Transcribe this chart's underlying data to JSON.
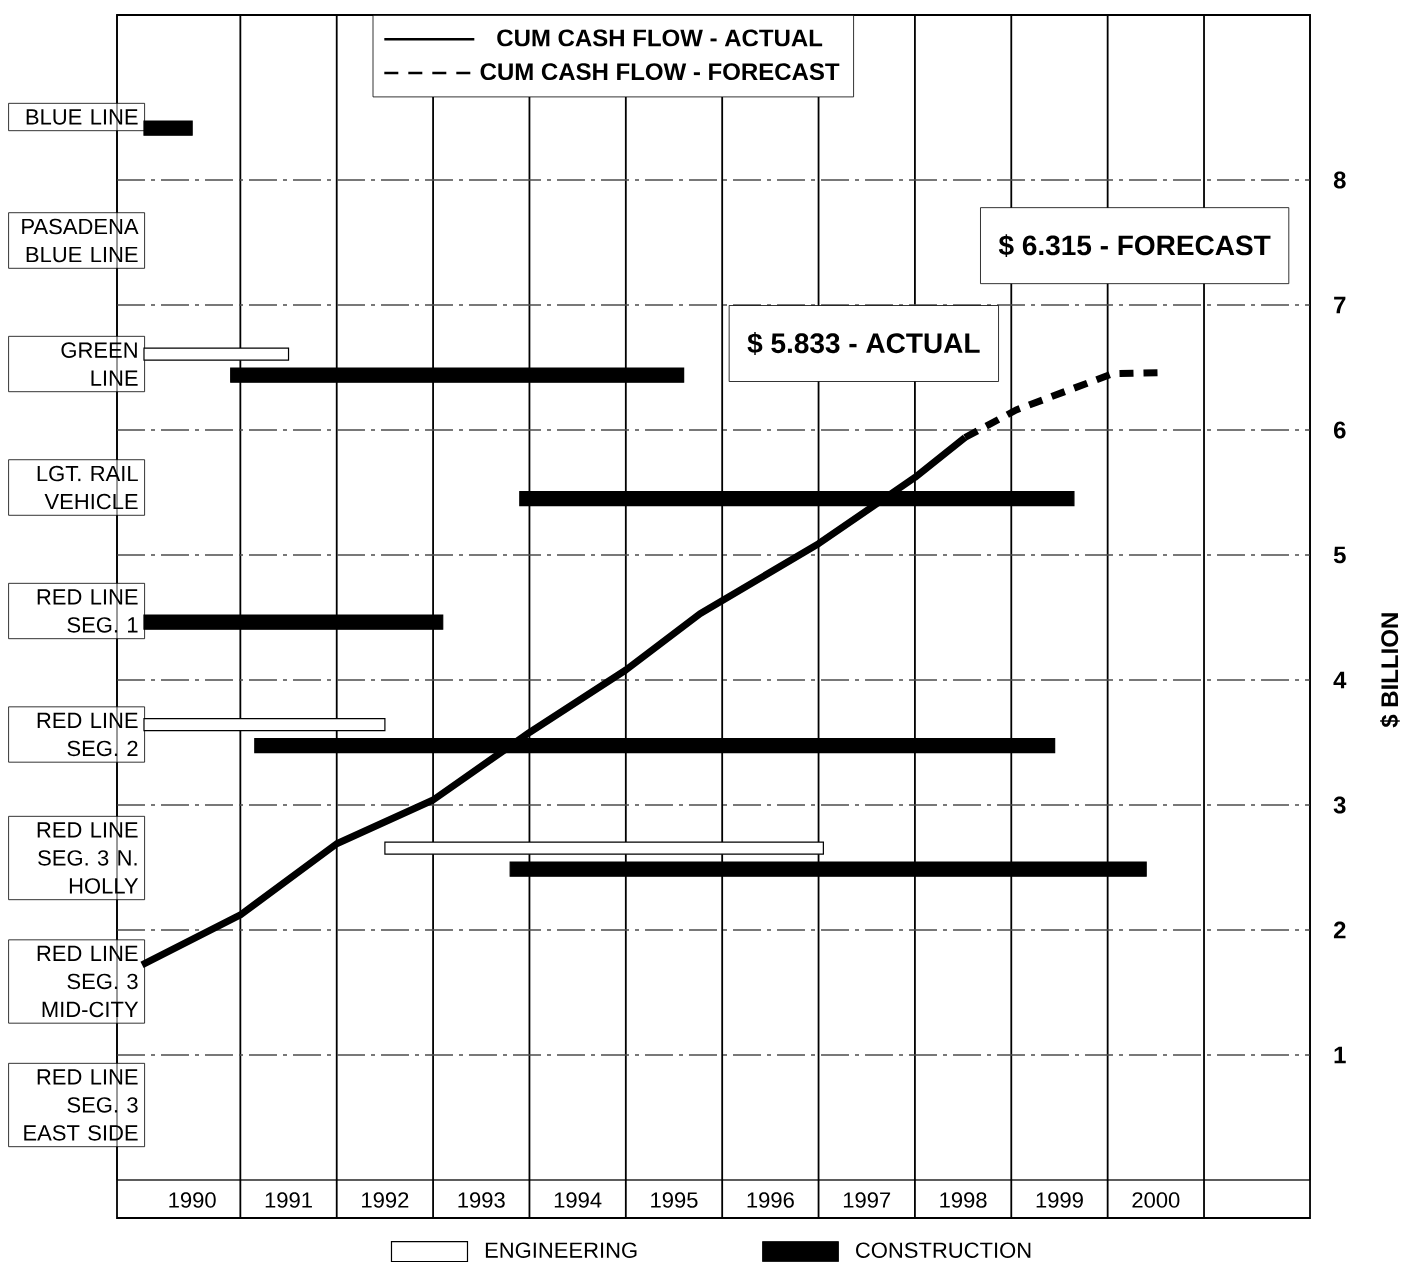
{
  "chart_data": [
    {
      "type": "bar",
      "orientation": "horizontal",
      "categories": [
        "BLUE LINE",
        "PASADENA BLUE LINE",
        "GREEN LINE",
        "LGT. RAIL VEHICLE",
        "RED LINE SEG. 1",
        "RED LINE SEG. 2",
        "RED LINE SEG. 3 N. HOLLY",
        "RED LINE SEG. 3 MID-CITY",
        "RED LINE SEG. 3 EAST SIDE"
      ],
      "xlim": [
        1989.72,
        2002.1
      ],
      "xticks": [
        {
          "value": 1990.5,
          "label": "1990"
        },
        {
          "value": 1991.5,
          "label": "1991"
        },
        {
          "value": 1992.5,
          "label": "1992"
        },
        {
          "value": 1993.5,
          "label": "1993"
        },
        {
          "value": 1994.5,
          "label": "1994"
        },
        {
          "value": 1995.5,
          "label": "1995"
        },
        {
          "value": 1996.5,
          "label": "1996"
        },
        {
          "value": 1997.5,
          "label": "1997"
        },
        {
          "value": 1998.5,
          "label": "1998"
        },
        {
          "value": 1999.5,
          "label": "1999"
        },
        {
          "value": 2000.5,
          "label": "2000"
        },
        {
          "value": 1991,
          "label": null
        },
        {
          "value": 1992,
          "label": null
        },
        {
          "value": 1993,
          "label": null
        },
        {
          "value": 1994,
          "label": null
        },
        {
          "value": 1995,
          "label": null
        },
        {
          "value": 1996,
          "label": null
        },
        {
          "value": 1997,
          "label": null
        },
        {
          "value": 1998,
          "label": null
        },
        {
          "value": 1999,
          "label": null
        },
        {
          "value": 2000,
          "label": null
        },
        {
          "value": 2001,
          "label": null
        }
      ],
      "grid": "x",
      "legend": "bottom",
      "series": [
        {
          "name": "ENGINEERING",
          "color": "#ffffff",
          "base": [
            null,
            null,
            1990.0,
            null,
            null,
            1990.0,
            1992.5,
            null,
            null
          ],
          "values": [
            null,
            null,
            1.5,
            null,
            null,
            2.5,
            4.55,
            null,
            null
          ]
        },
        {
          "name": "CONSTRUCTION",
          "color": "#000000",
          "base": [
            1990.0,
            null,
            1990.9,
            1993.9,
            1990.0,
            1991.15,
            1993.8,
            null,
            null
          ],
          "values": [
            0.5,
            null,
            4.7,
            5.75,
            3.1,
            8.3,
            6.6,
            null,
            null
          ]
        }
      ]
    },
    {
      "type": "line",
      "xlim": [
        1989.72,
        2002.1
      ],
      "ylim": [
        0,
        9.32
      ],
      "yticks": [
        1,
        2,
        3,
        4,
        5,
        6,
        7,
        8
      ],
      "ylabel": "$ BILLION",
      "grid": "y",
      "legend": "top",
      "tick_labels": "y",
      "annotations": [
        "$ 5.833 - ACTUAL",
        "$ 6.315 - FORECAST"
      ],
      "series": [
        {
          "name": "CUM CASH FLOW - ACTUAL",
          "color": "#000000",
          "line_style": "solid",
          "x": [
            1989.98,
            1991.0,
            1992.0,
            1993.0,
            1994.0,
            1995.0,
            1995.77,
            1997.0,
            1998.0,
            1998.52
          ],
          "values": [
            1.72,
            2.12,
            2.69,
            3.04,
            3.58,
            4.08,
            4.53,
            5.09,
            5.62,
            5.94
          ]
        },
        {
          "name": "CUM CASH FLOW - FORECAST",
          "color": "#000000",
          "line_style": "dashed",
          "x": [
            1998.52,
            1999.05,
            1999.6,
            2000.05,
            2000.6
          ],
          "values": [
            5.94,
            6.16,
            6.32,
            6.45,
            6.46
          ]
        }
      ]
    }
  ]
}
